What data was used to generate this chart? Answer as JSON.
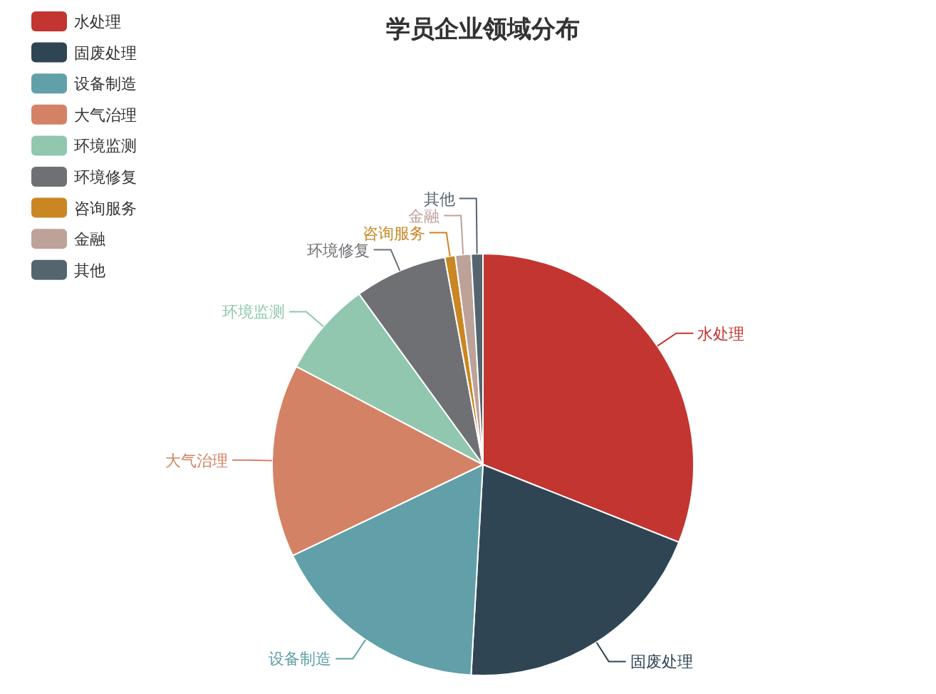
{
  "chart_data": {
    "type": "pie",
    "title": "学员企业领域分布",
    "categories": [
      "水处理",
      "固废处理",
      "设备制造",
      "大气治理",
      "环境监测",
      "环境修复",
      "咨询服务",
      "金融",
      "其他"
    ],
    "values": [
      31.0,
      19.9,
      17.0,
      14.8,
      7.3,
      7.1,
      0.8,
      1.2,
      0.9
    ],
    "colors": [
      "#c23531",
      "#2f4554",
      "#61a0a8",
      "#d48265",
      "#91c7ae",
      "#6e7074",
      "#ca8622",
      "#bda29a",
      "#546570"
    ],
    "legend": "top left"
  }
}
